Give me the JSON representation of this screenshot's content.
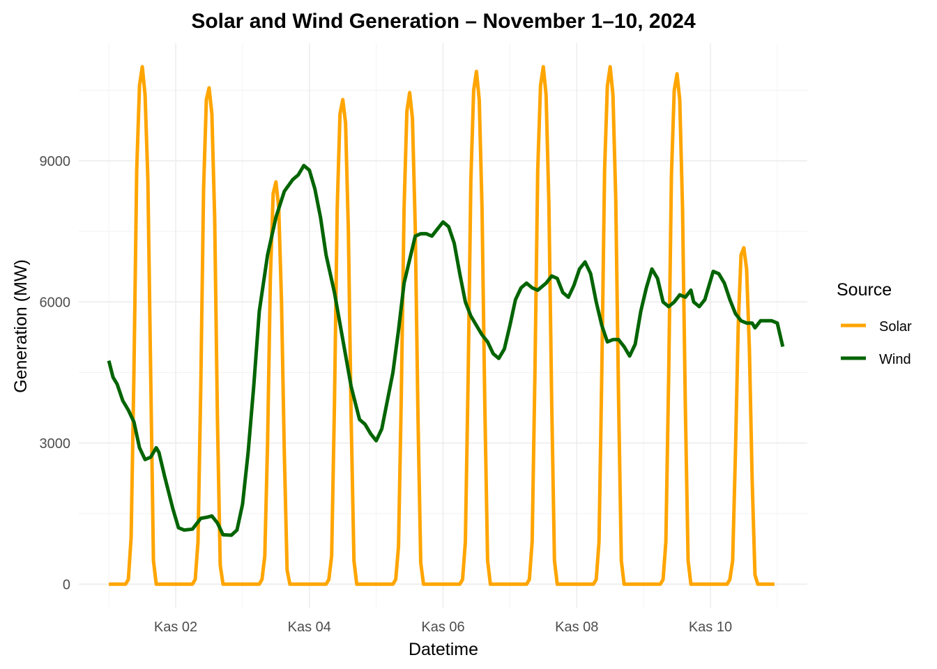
{
  "chart_data": {
    "type": "line",
    "title": "Solar and Wind Generation – November 1–10, 2024",
    "xlabel": "Datetime",
    "ylabel": "Generation (MW)",
    "x_range": [
      "2024-11-01",
      "2024-11-11"
    ],
    "ylim": [
      -500,
      11500
    ],
    "y_ticks": [
      0,
      3000,
      6000,
      9000
    ],
    "x_ticks": [
      {
        "date": "2024-11-02",
        "label": "Kas 02"
      },
      {
        "date": "2024-11-04",
        "label": "Kas 04"
      },
      {
        "date": "2024-11-06",
        "label": "Kas 06"
      },
      {
        "date": "2024-11-08",
        "label": "Kas 08"
      },
      {
        "date": "2024-11-10",
        "label": "Kas 10"
      }
    ],
    "grid": true,
    "legend": {
      "title": "Source",
      "position": "right"
    },
    "series": [
      {
        "name": "Solar",
        "color": "#FFA500",
        "points": [
          [
            "2024-11-01 00:00",
            0
          ],
          [
            "2024-11-01 06:00",
            0
          ],
          [
            "2024-11-01 07:00",
            100
          ],
          [
            "2024-11-01 08:00",
            1000
          ],
          [
            "2024-11-01 09:00",
            4500
          ],
          [
            "2024-11-01 10:00",
            8800
          ],
          [
            "2024-11-01 11:00",
            10600
          ],
          [
            "2024-11-01 12:00",
            11000
          ],
          [
            "2024-11-01 13:00",
            10400
          ],
          [
            "2024-11-01 14:00",
            8600
          ],
          [
            "2024-11-01 15:00",
            4500
          ],
          [
            "2024-11-01 16:00",
            500
          ],
          [
            "2024-11-01 17:00",
            0
          ],
          [
            "2024-11-02 06:00",
            0
          ],
          [
            "2024-11-02 07:00",
            100
          ],
          [
            "2024-11-02 08:00",
            900
          ],
          [
            "2024-11-02 09:00",
            4200
          ],
          [
            "2024-11-02 10:00",
            8400
          ],
          [
            "2024-11-02 11:00",
            10300
          ],
          [
            "2024-11-02 12:00",
            10550
          ],
          [
            "2024-11-02 13:00",
            10000
          ],
          [
            "2024-11-02 14:00",
            7800
          ],
          [
            "2024-11-02 15:00",
            3500
          ],
          [
            "2024-11-02 16:00",
            400
          ],
          [
            "2024-11-02 17:00",
            0
          ],
          [
            "2024-11-03 06:00",
            0
          ],
          [
            "2024-11-03 07:00",
            100
          ],
          [
            "2024-11-03 08:00",
            600
          ],
          [
            "2024-11-03 09:00",
            3000
          ],
          [
            "2024-11-03 10:00",
            6500
          ],
          [
            "2024-11-03 11:00",
            8300
          ],
          [
            "2024-11-03 12:00",
            8550
          ],
          [
            "2024-11-03 13:00",
            8000
          ],
          [
            "2024-11-03 14:00",
            6000
          ],
          [
            "2024-11-03 15:00",
            2800
          ],
          [
            "2024-11-03 16:00",
            300
          ],
          [
            "2024-11-03 17:00",
            0
          ],
          [
            "2024-11-04 06:00",
            0
          ],
          [
            "2024-11-04 07:00",
            100
          ],
          [
            "2024-11-04 08:00",
            600
          ],
          [
            "2024-11-04 09:00",
            3800
          ],
          [
            "2024-11-04 10:00",
            8000
          ],
          [
            "2024-11-04 11:00",
            10000
          ],
          [
            "2024-11-04 12:00",
            10300
          ],
          [
            "2024-11-04 13:00",
            9800
          ],
          [
            "2024-11-04 14:00",
            7500
          ],
          [
            "2024-11-04 15:00",
            3500
          ],
          [
            "2024-11-04 16:00",
            500
          ],
          [
            "2024-11-04 17:00",
            0
          ],
          [
            "2024-11-05 06:00",
            0
          ],
          [
            "2024-11-05 07:00",
            100
          ],
          [
            "2024-11-05 08:00",
            800
          ],
          [
            "2024-11-05 09:00",
            4000
          ],
          [
            "2024-11-05 10:00",
            8000
          ],
          [
            "2024-11-05 11:00",
            10050
          ],
          [
            "2024-11-05 12:00",
            10450
          ],
          [
            "2024-11-05 13:00",
            9900
          ],
          [
            "2024-11-05 14:00",
            7600
          ],
          [
            "2024-11-05 15:00",
            3600
          ],
          [
            "2024-11-05 16:00",
            450
          ],
          [
            "2024-11-05 17:00",
            0
          ],
          [
            "2024-11-06 06:00",
            0
          ],
          [
            "2024-11-06 07:00",
            100
          ],
          [
            "2024-11-06 08:00",
            900
          ],
          [
            "2024-11-06 09:00",
            4400
          ],
          [
            "2024-11-06 10:00",
            8600
          ],
          [
            "2024-11-06 11:00",
            10500
          ],
          [
            "2024-11-06 12:00",
            10900
          ],
          [
            "2024-11-06 13:00",
            10300
          ],
          [
            "2024-11-06 14:00",
            8000
          ],
          [
            "2024-11-06 15:00",
            3800
          ],
          [
            "2024-11-06 16:00",
            500
          ],
          [
            "2024-11-06 17:00",
            0
          ],
          [
            "2024-11-07 06:00",
            0
          ],
          [
            "2024-11-07 07:00",
            100
          ],
          [
            "2024-11-07 08:00",
            900
          ],
          [
            "2024-11-07 09:00",
            4500
          ],
          [
            "2024-11-07 10:00",
            8800
          ],
          [
            "2024-11-07 11:00",
            10600
          ],
          [
            "2024-11-07 12:00",
            11000
          ],
          [
            "2024-11-07 13:00",
            10400
          ],
          [
            "2024-11-07 14:00",
            8100
          ],
          [
            "2024-11-07 15:00",
            3900
          ],
          [
            "2024-11-07 16:00",
            500
          ],
          [
            "2024-11-07 17:00",
            0
          ],
          [
            "2024-11-08 06:00",
            0
          ],
          [
            "2024-11-08 07:00",
            100
          ],
          [
            "2024-11-08 08:00",
            900
          ],
          [
            "2024-11-08 09:00",
            4500
          ],
          [
            "2024-11-08 10:00",
            8800
          ],
          [
            "2024-11-08 11:00",
            10600
          ],
          [
            "2024-11-08 12:00",
            11000
          ],
          [
            "2024-11-08 13:00",
            10400
          ],
          [
            "2024-11-08 14:00",
            8200
          ],
          [
            "2024-11-08 15:00",
            4000
          ],
          [
            "2024-11-08 16:00",
            500
          ],
          [
            "2024-11-08 17:00",
            0
          ],
          [
            "2024-11-09 06:00",
            0
          ],
          [
            "2024-11-09 07:00",
            100
          ],
          [
            "2024-11-09 08:00",
            900
          ],
          [
            "2024-11-09 09:00",
            4400
          ],
          [
            "2024-11-09 10:00",
            8700
          ],
          [
            "2024-11-09 11:00",
            10500
          ],
          [
            "2024-11-09 12:00",
            10850
          ],
          [
            "2024-11-09 13:00",
            10300
          ],
          [
            "2024-11-09 14:00",
            8000
          ],
          [
            "2024-11-09 15:00",
            3800
          ],
          [
            "2024-11-09 16:00",
            500
          ],
          [
            "2024-11-09 17:00",
            0
          ],
          [
            "2024-11-10 06:00",
            0
          ],
          [
            "2024-11-10 07:00",
            100
          ],
          [
            "2024-11-10 08:00",
            500
          ],
          [
            "2024-11-10 09:00",
            2800
          ],
          [
            "2024-11-10 10:00",
            5500
          ],
          [
            "2024-11-10 11:00",
            7000
          ],
          [
            "2024-11-10 12:00",
            7150
          ],
          [
            "2024-11-10 13:00",
            6700
          ],
          [
            "2024-11-10 14:00",
            5000
          ],
          [
            "2024-11-10 15:00",
            2200
          ],
          [
            "2024-11-10 16:00",
            200
          ],
          [
            "2024-11-10 17:00",
            0
          ],
          [
            "2024-11-10 23:00",
            0
          ]
        ]
      },
      {
        "name": "Wind",
        "color": "#006400",
        "points": [
          [
            "2024-11-01 00:00",
            4750
          ],
          [
            "2024-11-01 01:30",
            4400
          ],
          [
            "2024-11-01 03:00",
            4250
          ],
          [
            "2024-11-01 05:00",
            3900
          ],
          [
            "2024-11-01 07:00",
            3700
          ],
          [
            "2024-11-01 09:00",
            3450
          ],
          [
            "2024-11-01 11:00",
            2900
          ],
          [
            "2024-11-01 13:00",
            2650
          ],
          [
            "2024-11-01 15:00",
            2700
          ],
          [
            "2024-11-01 17:00",
            2900
          ],
          [
            "2024-11-01 18:00",
            2800
          ],
          [
            "2024-11-01 20:00",
            2300
          ],
          [
            "2024-11-01 23:00",
            1600
          ],
          [
            "2024-11-02 01:00",
            1200
          ],
          [
            "2024-11-02 03:00",
            1150
          ],
          [
            "2024-11-02 06:00",
            1170
          ],
          [
            "2024-11-02 09:00",
            1400
          ],
          [
            "2024-11-02 11:00",
            1420
          ],
          [
            "2024-11-02 13:00",
            1450
          ],
          [
            "2024-11-02 15:00",
            1300
          ],
          [
            "2024-11-02 17:00",
            1050
          ],
          [
            "2024-11-02 20:00",
            1040
          ],
          [
            "2024-11-02 22:00",
            1150
          ],
          [
            "2024-11-03 00:00",
            1700
          ],
          [
            "2024-11-03 02:00",
            2800
          ],
          [
            "2024-11-03 04:00",
            4200
          ],
          [
            "2024-11-03 06:00",
            5800
          ],
          [
            "2024-11-03 09:00",
            7000
          ],
          [
            "2024-11-03 12:00",
            7800
          ],
          [
            "2024-11-03 15:00",
            8350
          ],
          [
            "2024-11-03 18:00",
            8600
          ],
          [
            "2024-11-03 20:00",
            8700
          ],
          [
            "2024-11-03 22:00",
            8900
          ],
          [
            "2024-11-04 00:00",
            8800
          ],
          [
            "2024-11-04 02:00",
            8400
          ],
          [
            "2024-11-04 04:00",
            7800
          ],
          [
            "2024-11-04 06:00",
            7000
          ],
          [
            "2024-11-04 09:00",
            6200
          ],
          [
            "2024-11-04 12:00",
            5200
          ],
          [
            "2024-11-04 15:00",
            4200
          ],
          [
            "2024-11-04 18:00",
            3500
          ],
          [
            "2024-11-04 20:00",
            3400
          ],
          [
            "2024-11-04 22:00",
            3200
          ],
          [
            "2024-11-05 00:00",
            3050
          ],
          [
            "2024-11-05 02:00",
            3300
          ],
          [
            "2024-11-05 04:00",
            3900
          ],
          [
            "2024-11-05 06:00",
            4500
          ],
          [
            "2024-11-05 08:00",
            5400
          ],
          [
            "2024-11-05 10:00",
            6400
          ],
          [
            "2024-11-05 12:00",
            6900
          ],
          [
            "2024-11-05 14:00",
            7400
          ],
          [
            "2024-11-05 16:00",
            7450
          ],
          [
            "2024-11-05 18:00",
            7450
          ],
          [
            "2024-11-05 20:00",
            7400
          ],
          [
            "2024-11-05 22:00",
            7550
          ],
          [
            "2024-11-06 00:00",
            7700
          ],
          [
            "2024-11-06 02:00",
            7600
          ],
          [
            "2024-11-06 04:00",
            7250
          ],
          [
            "2024-11-06 06:00",
            6600
          ],
          [
            "2024-11-06 08:00",
            6000
          ],
          [
            "2024-11-06 10:00",
            5700
          ],
          [
            "2024-11-06 12:00",
            5500
          ],
          [
            "2024-11-06 14:00",
            5300
          ],
          [
            "2024-11-06 16:00",
            5150
          ],
          [
            "2024-11-06 18:00",
            4900
          ],
          [
            "2024-11-06 20:00",
            4800
          ],
          [
            "2024-11-06 22:00",
            5000
          ],
          [
            "2024-11-07 00:00",
            5500
          ],
          [
            "2024-11-07 02:00",
            6050
          ],
          [
            "2024-11-07 04:00",
            6300
          ],
          [
            "2024-11-07 06:00",
            6400
          ],
          [
            "2024-11-07 08:00",
            6300
          ],
          [
            "2024-11-07 10:00",
            6250
          ],
          [
            "2024-11-07 13:00",
            6400
          ],
          [
            "2024-11-07 15:00",
            6550
          ],
          [
            "2024-11-07 17:00",
            6500
          ],
          [
            "2024-11-07 19:00",
            6200
          ],
          [
            "2024-11-07 21:00",
            6100
          ],
          [
            "2024-11-07 23:00",
            6350
          ],
          [
            "2024-11-08 01:00",
            6700
          ],
          [
            "2024-11-08 03:00",
            6850
          ],
          [
            "2024-11-08 05:00",
            6600
          ],
          [
            "2024-11-08 07:00",
            6000
          ],
          [
            "2024-11-08 09:00",
            5500
          ],
          [
            "2024-11-08 11:00",
            5150
          ],
          [
            "2024-11-08 13:00",
            5200
          ],
          [
            "2024-11-08 15:00",
            5200
          ],
          [
            "2024-11-08 17:00",
            5050
          ],
          [
            "2024-11-08 19:00",
            4850
          ],
          [
            "2024-11-08 21:00",
            5100
          ],
          [
            "2024-11-08 23:00",
            5800
          ],
          [
            "2024-11-09 01:00",
            6300
          ],
          [
            "2024-11-09 03:00",
            6700
          ],
          [
            "2024-11-09 05:00",
            6500
          ],
          [
            "2024-11-09 07:00",
            6000
          ],
          [
            "2024-11-09 09:00",
            5900
          ],
          [
            "2024-11-09 11:00",
            6000
          ],
          [
            "2024-11-09 13:00",
            6150
          ],
          [
            "2024-11-09 15:00",
            6100
          ],
          [
            "2024-11-09 17:00",
            6250
          ],
          [
            "2024-11-09 18:00",
            6000
          ],
          [
            "2024-11-09 20:00",
            5900
          ],
          [
            "2024-11-09 22:00",
            6050
          ],
          [
            "2024-11-10 00:00",
            6450
          ],
          [
            "2024-11-10 01:00",
            6650
          ],
          [
            "2024-11-10 03:00",
            6600
          ],
          [
            "2024-11-10 05:00",
            6400
          ],
          [
            "2024-11-10 07:00",
            6050
          ],
          [
            "2024-11-10 09:00",
            5750
          ],
          [
            "2024-11-10 11:00",
            5600
          ],
          [
            "2024-11-10 13:00",
            5550
          ],
          [
            "2024-11-10 15:00",
            5550
          ],
          [
            "2024-11-10 16:00",
            5450
          ],
          [
            "2024-11-10 18:00",
            5600
          ],
          [
            "2024-11-10 20:00",
            5600
          ],
          [
            "2024-11-10 22:00",
            5600
          ],
          [
            "2024-11-11 00:00",
            5550
          ],
          [
            "2024-11-11 02:00",
            5050
          ]
        ]
      }
    ]
  }
}
